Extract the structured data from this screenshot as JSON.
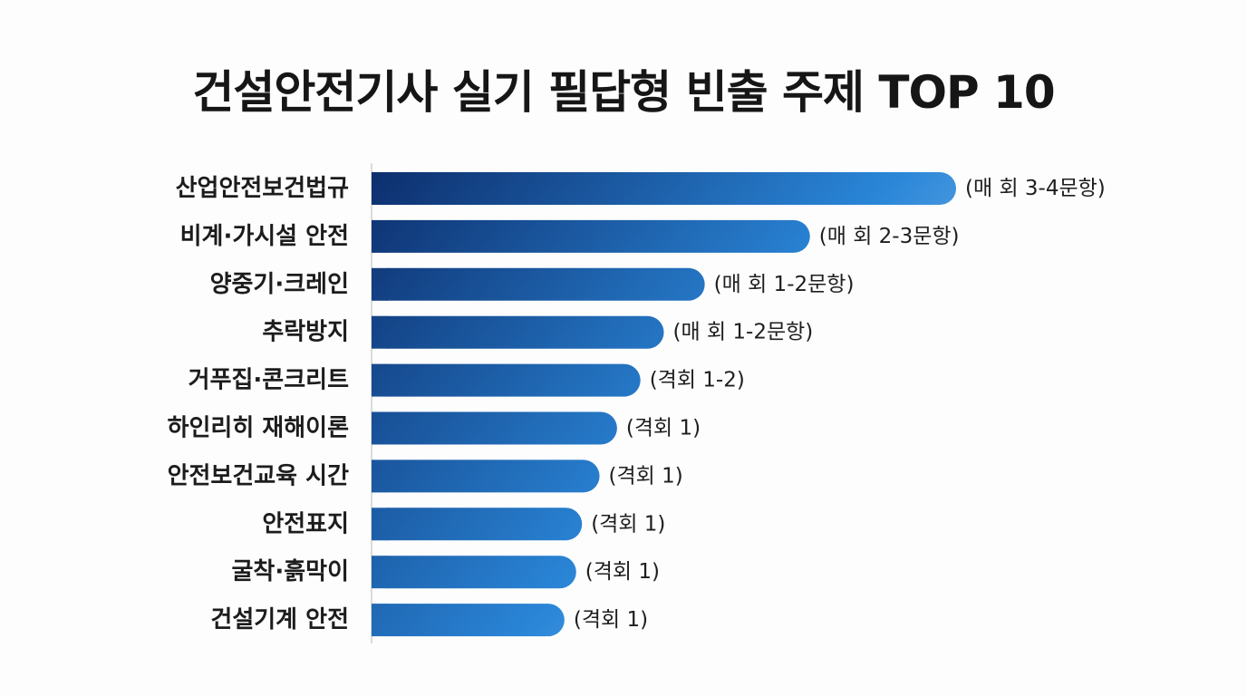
{
  "title": "건설안전기사 실기 필답형 빈출 주제 TOP 10",
  "chart_data": {
    "type": "bar",
    "orientation": "horizontal",
    "title": "건설안전기사 실기 필답형 빈출 주제 TOP 10",
    "xlabel": "",
    "ylabel": "",
    "grid": false,
    "legend": "none",
    "categories": [
      "산업안전보건법규",
      "비계·가시설 안전",
      "양중기·크레인",
      "추락방지",
      "거푸집·콘크리트",
      "하인리히 재해이론",
      "안전보건교육 시간",
      "안전표지",
      "굴착·흙막이",
      "건설기계 안전"
    ],
    "values": [
      100,
      75,
      57,
      50,
      46,
      42,
      39,
      36,
      35,
      33
    ],
    "data_labels": [
      "(매 회 3-4문항)",
      "(매 회 2-3문항)",
      "(매 회 1-2문항)",
      "(매 회 1-2문항)",
      "(격회 1-2)",
      "(격회 1)",
      "(격회 1)",
      "(격회 1)",
      "(격회 1)",
      "(격회 1)"
    ],
    "xlim": [
      0,
      100
    ],
    "colors": {
      "gradient_start": "#0d2f6e",
      "gradient_mid": "#2a86d8",
      "gradient_end": "#a9d2f3",
      "axis_line": "#d0d0d0"
    }
  }
}
